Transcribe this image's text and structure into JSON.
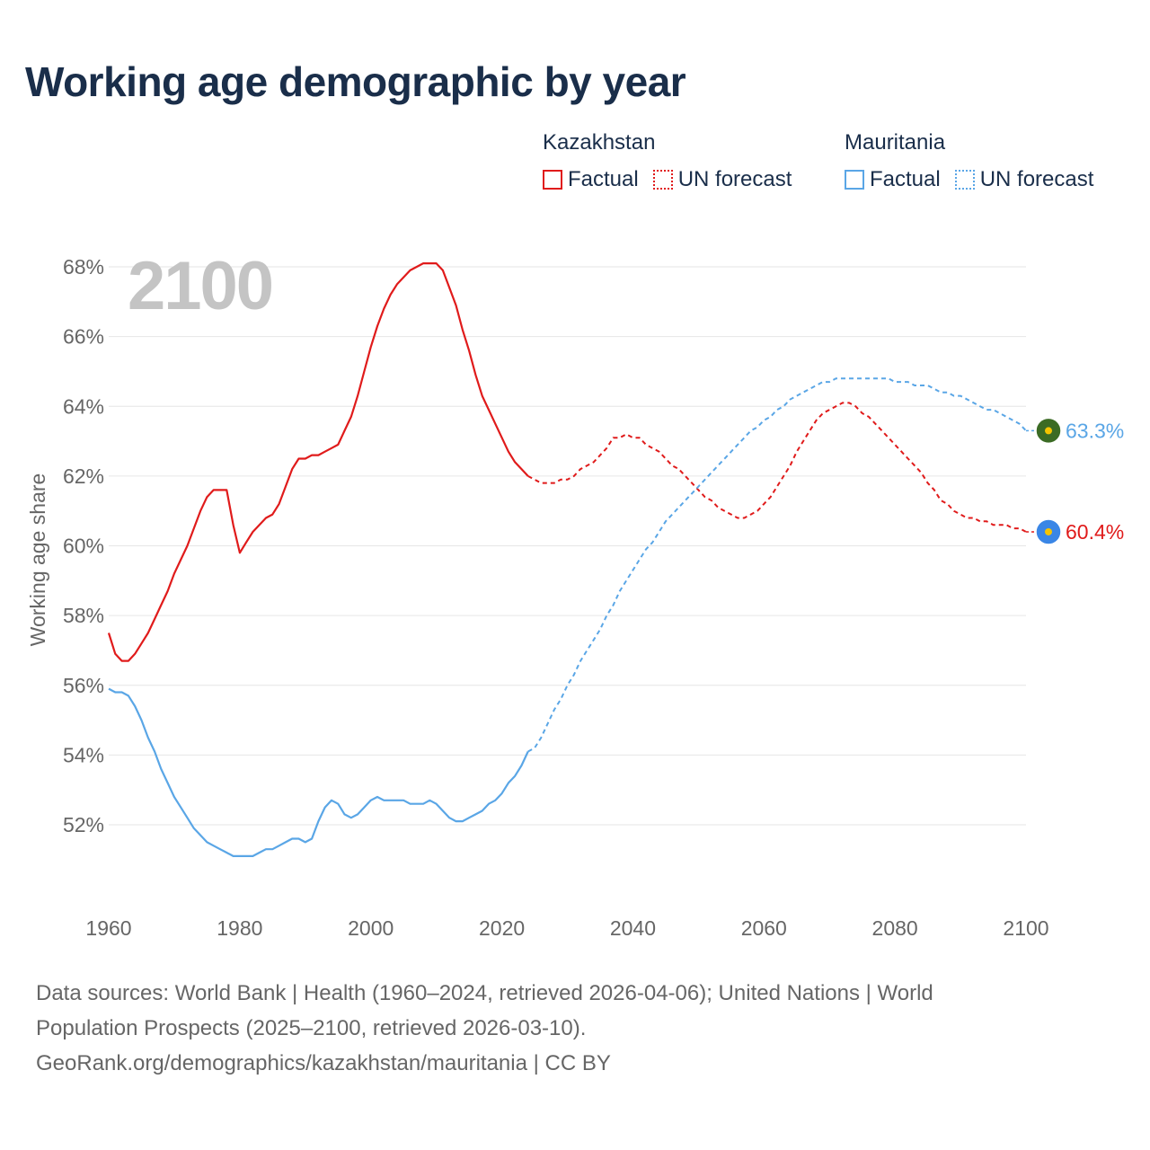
{
  "title": "Working age demographic by year",
  "legend": {
    "groups": [
      {
        "country": "Kazakhstan",
        "color": "#e01b1b",
        "factual_label": "Factual",
        "forecast_label": "UN forecast"
      },
      {
        "country": "Mauritania",
        "color": "#5aa6e6",
        "factual_label": "Factual",
        "forecast_label": "UN forecast"
      }
    ]
  },
  "footer": {
    "line1": "Data sources: World Bank | Health (1960–2024, retrieved 2026-04-06); United Nations | World",
    "line2": "Population Prospects (2025–2100, retrieved 2026-03-10).",
    "line3": "GeoRank.org/demographics/kazakhstan/mauritania | CC BY"
  },
  "chart_data": {
    "type": "line",
    "title": "Working age demographic by year",
    "year_label": "2100",
    "xlabel": "",
    "ylabel": "Working age share",
    "xlim": [
      1960,
      2100
    ],
    "ylim": [
      50,
      69
    ],
    "x_ticks": [
      1960,
      1980,
      2000,
      2020,
      2040,
      2060,
      2080,
      2100
    ],
    "y_ticks": [
      52,
      54,
      56,
      58,
      60,
      62,
      64,
      66,
      68
    ],
    "y_tick_labels": [
      "52%",
      "54%",
      "56%",
      "58%",
      "60%",
      "62%",
      "64%",
      "66%",
      "68%"
    ],
    "grid": true,
    "forecast_start_year": 2024,
    "series": [
      {
        "name": "Kazakhstan",
        "color": "#e01b1b",
        "end_label": "60.4%",
        "flag_colors": [
          "#3a86e6",
          "#f5c400"
        ],
        "points": [
          [
            1960,
            57.5
          ],
          [
            1961,
            56.9
          ],
          [
            1962,
            56.7
          ],
          [
            1963,
            56.7
          ],
          [
            1964,
            56.9
          ],
          [
            1965,
            57.2
          ],
          [
            1966,
            57.5
          ],
          [
            1967,
            57.9
          ],
          [
            1968,
            58.3
          ],
          [
            1969,
            58.7
          ],
          [
            1970,
            59.2
          ],
          [
            1971,
            59.6
          ],
          [
            1972,
            60.0
          ],
          [
            1973,
            60.5
          ],
          [
            1974,
            61.0
          ],
          [
            1975,
            61.4
          ],
          [
            1976,
            61.6
          ],
          [
            1977,
            61.6
          ],
          [
            1978,
            61.6
          ],
          [
            1979,
            60.6
          ],
          [
            1980,
            59.8
          ],
          [
            1981,
            60.1
          ],
          [
            1982,
            60.4
          ],
          [
            1983,
            60.6
          ],
          [
            1984,
            60.8
          ],
          [
            1985,
            60.9
          ],
          [
            1986,
            61.2
          ],
          [
            1987,
            61.7
          ],
          [
            1988,
            62.2
          ],
          [
            1989,
            62.5
          ],
          [
            1990,
            62.5
          ],
          [
            1991,
            62.6
          ],
          [
            1992,
            62.6
          ],
          [
            1993,
            62.7
          ],
          [
            1994,
            62.8
          ],
          [
            1995,
            62.9
          ],
          [
            1996,
            63.3
          ],
          [
            1997,
            63.7
          ],
          [
            1998,
            64.3
          ],
          [
            1999,
            65.0
          ],
          [
            2000,
            65.7
          ],
          [
            2001,
            66.3
          ],
          [
            2002,
            66.8
          ],
          [
            2003,
            67.2
          ],
          [
            2004,
            67.5
          ],
          [
            2005,
            67.7
          ],
          [
            2006,
            67.9
          ],
          [
            2007,
            68.0
          ],
          [
            2008,
            68.1
          ],
          [
            2009,
            68.1
          ],
          [
            2010,
            68.1
          ],
          [
            2011,
            67.9
          ],
          [
            2012,
            67.4
          ],
          [
            2013,
            66.9
          ],
          [
            2014,
            66.2
          ],
          [
            2015,
            65.6
          ],
          [
            2016,
            64.9
          ],
          [
            2017,
            64.3
          ],
          [
            2018,
            63.9
          ],
          [
            2019,
            63.5
          ],
          [
            2020,
            63.1
          ],
          [
            2021,
            62.7
          ],
          [
            2022,
            62.4
          ],
          [
            2023,
            62.2
          ],
          [
            2024,
            62.0
          ],
          [
            2025,
            61.9
          ],
          [
            2026,
            61.8
          ],
          [
            2027,
            61.8
          ],
          [
            2028,
            61.8
          ],
          [
            2029,
            61.9
          ],
          [
            2030,
            61.9
          ],
          [
            2031,
            62.0
          ],
          [
            2032,
            62.2
          ],
          [
            2033,
            62.3
          ],
          [
            2034,
            62.4
          ],
          [
            2035,
            62.6
          ],
          [
            2036,
            62.8
          ],
          [
            2037,
            63.1
          ],
          [
            2038,
            63.1
          ],
          [
            2039,
            63.2
          ],
          [
            2040,
            63.1
          ],
          [
            2041,
            63.1
          ],
          [
            2042,
            62.9
          ],
          [
            2043,
            62.8
          ],
          [
            2044,
            62.7
          ],
          [
            2045,
            62.5
          ],
          [
            2046,
            62.3
          ],
          [
            2047,
            62.2
          ],
          [
            2048,
            62.0
          ],
          [
            2049,
            61.8
          ],
          [
            2050,
            61.6
          ],
          [
            2051,
            61.4
          ],
          [
            2052,
            61.3
          ],
          [
            2053,
            61.1
          ],
          [
            2054,
            61.0
          ],
          [
            2055,
            60.9
          ],
          [
            2056,
            60.8
          ],
          [
            2057,
            60.8
          ],
          [
            2058,
            60.9
          ],
          [
            2059,
            61.0
          ],
          [
            2060,
            61.2
          ],
          [
            2061,
            61.4
          ],
          [
            2062,
            61.7
          ],
          [
            2063,
            62.0
          ],
          [
            2064,
            62.3
          ],
          [
            2065,
            62.7
          ],
          [
            2066,
            63.0
          ],
          [
            2067,
            63.3
          ],
          [
            2068,
            63.6
          ],
          [
            2069,
            63.8
          ],
          [
            2070,
            63.9
          ],
          [
            2071,
            64.0
          ],
          [
            2072,
            64.1
          ],
          [
            2073,
            64.1
          ],
          [
            2074,
            64.0
          ],
          [
            2075,
            63.8
          ],
          [
            2076,
            63.7
          ],
          [
            2077,
            63.5
          ],
          [
            2078,
            63.3
          ],
          [
            2079,
            63.1
          ],
          [
            2080,
            62.9
          ],
          [
            2081,
            62.7
          ],
          [
            2082,
            62.5
          ],
          [
            2083,
            62.3
          ],
          [
            2084,
            62.1
          ],
          [
            2085,
            61.8
          ],
          [
            2086,
            61.6
          ],
          [
            2087,
            61.3
          ],
          [
            2088,
            61.2
          ],
          [
            2089,
            61.0
          ],
          [
            2090,
            60.9
          ],
          [
            2091,
            60.8
          ],
          [
            2092,
            60.8
          ],
          [
            2093,
            60.7
          ],
          [
            2094,
            60.7
          ],
          [
            2095,
            60.6
          ],
          [
            2096,
            60.6
          ],
          [
            2097,
            60.6
          ],
          [
            2098,
            60.5
          ],
          [
            2099,
            60.5
          ],
          [
            2100,
            60.4
          ]
        ]
      },
      {
        "name": "Mauritania",
        "color": "#5aa6e6",
        "end_label": "63.3%",
        "flag_colors": [
          "#3b6b24",
          "#f5c400"
        ],
        "points": [
          [
            1960,
            55.9
          ],
          [
            1961,
            55.8
          ],
          [
            1962,
            55.8
          ],
          [
            1963,
            55.7
          ],
          [
            1964,
            55.4
          ],
          [
            1965,
            55.0
          ],
          [
            1966,
            54.5
          ],
          [
            1967,
            54.1
          ],
          [
            1968,
            53.6
          ],
          [
            1969,
            53.2
          ],
          [
            1970,
            52.8
          ],
          [
            1971,
            52.5
          ],
          [
            1972,
            52.2
          ],
          [
            1973,
            51.9
          ],
          [
            1974,
            51.7
          ],
          [
            1975,
            51.5
          ],
          [
            1976,
            51.4
          ],
          [
            1977,
            51.3
          ],
          [
            1978,
            51.2
          ],
          [
            1979,
            51.1
          ],
          [
            1980,
            51.1
          ],
          [
            1981,
            51.1
          ],
          [
            1982,
            51.1
          ],
          [
            1983,
            51.2
          ],
          [
            1984,
            51.3
          ],
          [
            1985,
            51.3
          ],
          [
            1986,
            51.4
          ],
          [
            1987,
            51.5
          ],
          [
            1988,
            51.6
          ],
          [
            1989,
            51.6
          ],
          [
            1990,
            51.5
          ],
          [
            1991,
            51.6
          ],
          [
            1992,
            52.1
          ],
          [
            1993,
            52.5
          ],
          [
            1994,
            52.7
          ],
          [
            1995,
            52.6
          ],
          [
            1996,
            52.3
          ],
          [
            1997,
            52.2
          ],
          [
            1998,
            52.3
          ],
          [
            1999,
            52.5
          ],
          [
            2000,
            52.7
          ],
          [
            2001,
            52.8
          ],
          [
            2002,
            52.7
          ],
          [
            2003,
            52.7
          ],
          [
            2004,
            52.7
          ],
          [
            2005,
            52.7
          ],
          [
            2006,
            52.6
          ],
          [
            2007,
            52.6
          ],
          [
            2008,
            52.6
          ],
          [
            2009,
            52.7
          ],
          [
            2010,
            52.6
          ],
          [
            2011,
            52.4
          ],
          [
            2012,
            52.2
          ],
          [
            2013,
            52.1
          ],
          [
            2014,
            52.1
          ],
          [
            2015,
            52.2
          ],
          [
            2016,
            52.3
          ],
          [
            2017,
            52.4
          ],
          [
            2018,
            52.6
          ],
          [
            2019,
            52.7
          ],
          [
            2020,
            52.9
          ],
          [
            2021,
            53.2
          ],
          [
            2022,
            53.4
          ],
          [
            2023,
            53.7
          ],
          [
            2024,
            54.1
          ],
          [
            2025,
            54.2
          ],
          [
            2026,
            54.5
          ],
          [
            2027,
            54.9
          ],
          [
            2028,
            55.3
          ],
          [
            2029,
            55.6
          ],
          [
            2030,
            56.0
          ],
          [
            2031,
            56.3
          ],
          [
            2032,
            56.7
          ],
          [
            2033,
            57.0
          ],
          [
            2034,
            57.3
          ],
          [
            2035,
            57.6
          ],
          [
            2036,
            58.0
          ],
          [
            2037,
            58.3
          ],
          [
            2038,
            58.7
          ],
          [
            2039,
            59.0
          ],
          [
            2040,
            59.3
          ],
          [
            2041,
            59.6
          ],
          [
            2042,
            59.9
          ],
          [
            2043,
            60.1
          ],
          [
            2044,
            60.4
          ],
          [
            2045,
            60.7
          ],
          [
            2046,
            60.9
          ],
          [
            2047,
            61.1
          ],
          [
            2048,
            61.3
          ],
          [
            2049,
            61.5
          ],
          [
            2050,
            61.7
          ],
          [
            2051,
            61.9
          ],
          [
            2052,
            62.1
          ],
          [
            2053,
            62.3
          ],
          [
            2054,
            62.5
          ],
          [
            2055,
            62.7
          ],
          [
            2056,
            62.9
          ],
          [
            2057,
            63.1
          ],
          [
            2058,
            63.3
          ],
          [
            2059,
            63.4
          ],
          [
            2060,
            63.6
          ],
          [
            2061,
            63.7
          ],
          [
            2062,
            63.9
          ],
          [
            2063,
            64.0
          ],
          [
            2064,
            64.2
          ],
          [
            2065,
            64.3
          ],
          [
            2066,
            64.4
          ],
          [
            2067,
            64.5
          ],
          [
            2068,
            64.6
          ],
          [
            2069,
            64.7
          ],
          [
            2070,
            64.7
          ],
          [
            2071,
            64.8
          ],
          [
            2072,
            64.8
          ],
          [
            2073,
            64.8
          ],
          [
            2074,
            64.8
          ],
          [
            2075,
            64.8
          ],
          [
            2076,
            64.8
          ],
          [
            2077,
            64.8
          ],
          [
            2078,
            64.8
          ],
          [
            2079,
            64.8
          ],
          [
            2080,
            64.7
          ],
          [
            2081,
            64.7
          ],
          [
            2082,
            64.7
          ],
          [
            2083,
            64.6
          ],
          [
            2084,
            64.6
          ],
          [
            2085,
            64.6
          ],
          [
            2086,
            64.5
          ],
          [
            2087,
            64.4
          ],
          [
            2088,
            64.4
          ],
          [
            2089,
            64.3
          ],
          [
            2090,
            64.3
          ],
          [
            2091,
            64.2
          ],
          [
            2092,
            64.1
          ],
          [
            2093,
            64.0
          ],
          [
            2094,
            63.9
          ],
          [
            2095,
            63.9
          ],
          [
            2096,
            63.8
          ],
          [
            2097,
            63.7
          ],
          [
            2098,
            63.6
          ],
          [
            2099,
            63.5
          ],
          [
            2100,
            63.3
          ]
        ]
      }
    ]
  }
}
